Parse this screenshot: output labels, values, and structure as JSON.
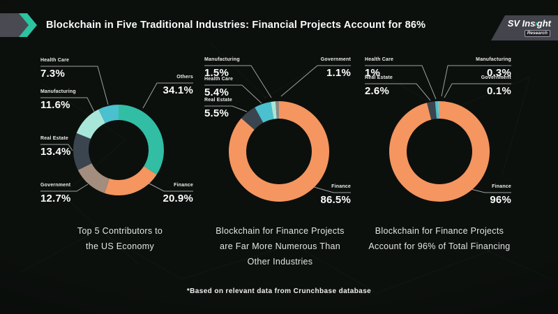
{
  "header": {
    "title": "Blockchain in Five Traditional Industries: Financial Projects Account for 86%",
    "logo": {
      "brand_pre": "SV Ins",
      "chevron_glyph": "›",
      "brand_post": "ght",
      "badge": "Research"
    }
  },
  "footnote": "*Based on relevant data from Crunchbase database",
  "colors": {
    "background": "#0C100D",
    "accent_teal": "#2BC3A0",
    "finance_orange": "#F5955F",
    "others_teal": "#31BEA4",
    "real_estate_slate": "#3A4550",
    "government_taupe": "#A28D7E",
    "government_gray": "#8D877E",
    "manufacturing_mint": "#A9E6DA",
    "health_care_cyan": "#4BC0CE"
  },
  "chart_data": [
    {
      "type": "pie",
      "style": "donut",
      "title": "Top 5 Contributors to the US Economy",
      "caption_lines": [
        "Top 5 Contributors to",
        "the US Economy"
      ],
      "legend_position": "callouts",
      "segments": [
        {
          "label": "Others",
          "value": 34.1,
          "color": "#31BEA4"
        },
        {
          "label": "Finance",
          "value": 20.9,
          "color": "#F5955F"
        },
        {
          "label": "Government",
          "value": 12.7,
          "color": "#A28D7E"
        },
        {
          "label": "Real Estate",
          "value": 13.4,
          "color": "#3A4550"
        },
        {
          "label": "Manufacturing",
          "value": 11.6,
          "color": "#A9E6DA"
        },
        {
          "label": "Health Care",
          "value": 7.3,
          "color": "#4BC0CE"
        }
      ],
      "callouts": [
        {
          "name": "Health Care",
          "value": "7.3%"
        },
        {
          "name": "Manufacturing",
          "value": "11.6%"
        },
        {
          "name": "Real Estate",
          "value": "13.4%"
        },
        {
          "name": "Government",
          "value": "12.7%"
        },
        {
          "name": "Others",
          "value": "34.1%"
        },
        {
          "name": "Finance",
          "value": "20.9%"
        }
      ]
    },
    {
      "type": "pie",
      "style": "donut",
      "title": "Blockchain for Finance Projects are Far More Numerous Than Other Industries",
      "caption_lines": [
        "Blockchain for Finance Projects",
        "are Far More Numerous Than",
        "Other Industries"
      ],
      "legend_position": "callouts",
      "segments": [
        {
          "label": "Finance",
          "value": 86.5,
          "color": "#F5955F"
        },
        {
          "label": "Real Estate",
          "value": 5.5,
          "color": "#3A4550"
        },
        {
          "label": "Health Care",
          "value": 5.4,
          "color": "#4BC0CE"
        },
        {
          "label": "Manufacturing",
          "value": 1.5,
          "color": "#A9E6DA"
        },
        {
          "label": "Government",
          "value": 1.1,
          "color": "#8D877E"
        }
      ],
      "callouts": [
        {
          "name": "Manufacturing",
          "value": "1.5%"
        },
        {
          "name": "Health Care",
          "value": "5.4%"
        },
        {
          "name": "Real Estate",
          "value": "5.5%"
        },
        {
          "name": "Government",
          "value": "1.1%"
        },
        {
          "name": "Finance",
          "value": "86.5%"
        }
      ]
    },
    {
      "type": "pie",
      "style": "donut",
      "title": "Blockchain for Finance Projects Account for 96% of Total Financing",
      "caption_lines": [
        "Blockchain for Finance Projects",
        "Account for 96% of Total Financing"
      ],
      "legend_position": "callouts",
      "segments": [
        {
          "label": "Finance",
          "value": 96,
          "color": "#F5955F"
        },
        {
          "label": "Real Estate",
          "value": 2.6,
          "color": "#3A4550"
        },
        {
          "label": "Health Care",
          "value": 1.0,
          "color": "#4BC0CE"
        },
        {
          "label": "Manufacturing",
          "value": 0.3,
          "color": "#A9E6DA"
        },
        {
          "label": "Government",
          "value": 0.1,
          "color": "#8D877E"
        }
      ],
      "callouts": [
        {
          "name": "Health Care",
          "value": "1%"
        },
        {
          "name": "Real Estate",
          "value": "2.6%"
        },
        {
          "name": "Manufacturing",
          "value": "0.3%"
        },
        {
          "name": "Government",
          "value": "0.1%"
        },
        {
          "name": "Finance",
          "value": "96%"
        }
      ]
    }
  ]
}
